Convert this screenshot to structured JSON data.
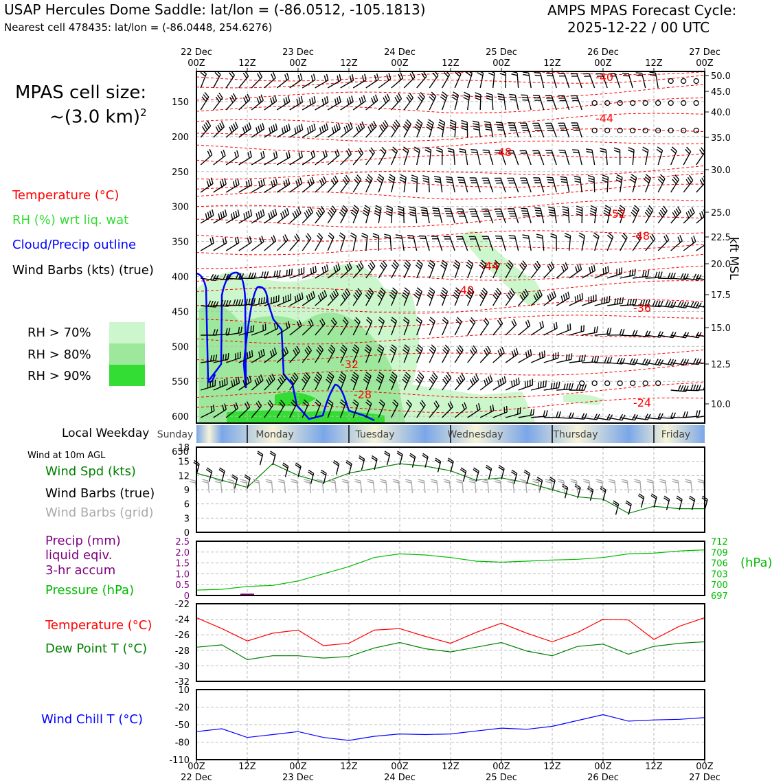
{
  "header": {
    "title_left": "USAP Hercules Dome Saddle: lat/lon = (-86.0512, -105.1813)",
    "subtitle_left": "Nearest cell 478435: lat/lon = (-86.0448, 254.6276)",
    "title_right_1": "AMPS MPAS Forecast Cycle:",
    "title_right_2": "2025-12-22 / 00 UTC"
  },
  "legend": {
    "cell_size_label": "MPAS cell size:",
    "cell_size_value": "~(3.0 km)",
    "cell_size_exp": "2",
    "temperature": "Temperature (°C)",
    "rh": "RH (%) wrt liq. wat",
    "cloud": "Cloud/Precip outline",
    "wind_barbs": "Wind Barbs (kts) (true)",
    "rh_levels": [
      "RH > 70%",
      "RH > 80%",
      "RH > 90%"
    ],
    "rh_colors": [
      "#ccf7cc",
      "#9de89d",
      "#33dd33"
    ]
  },
  "time_axis": {
    "top_labels": [
      {
        "day": "22 Dec",
        "hour": "00Z"
      },
      {
        "day": "",
        "hour": "12Z"
      },
      {
        "day": "23 Dec",
        "hour": "00Z"
      },
      {
        "day": "",
        "hour": "12Z"
      },
      {
        "day": "24 Dec",
        "hour": "00Z"
      },
      {
        "day": "",
        "hour": "12Z"
      },
      {
        "day": "25 Dec",
        "hour": "00Z"
      },
      {
        "day": "",
        "hour": "12Z"
      },
      {
        "day": "26 Dec",
        "hour": "00Z"
      },
      {
        "day": "",
        "hour": "12Z"
      },
      {
        "day": "27 Dec",
        "hour": "00Z"
      }
    ]
  },
  "weekday_bar": {
    "label": "Local Weekday",
    "days": [
      "Sunday",
      "Monday",
      "Tuesday",
      "Wednesday",
      "Thursday",
      "Friday"
    ]
  },
  "sounding_panel": {
    "pressure_ticks": [
      150,
      200,
      250,
      300,
      350,
      400,
      450,
      500,
      550,
      600,
      650
    ],
    "kft_ticks": [
      "50.0",
      "45.0",
      "40.0",
      "35.0",
      "30.0",
      "25.0",
      "22.5",
      "20.0",
      "17.5",
      "15.0",
      "12.5",
      "10.0"
    ],
    "kft_label": "kft MSL",
    "temp_contour_labels": [
      "-40",
      "-44",
      "-48",
      "-52",
      "-48",
      "-44",
      "-40",
      "-36",
      "-32",
      "-28",
      "-24"
    ]
  },
  "wind_panel": {
    "title": "Wind at 10m AGL",
    "spd_label": "Wind Spd (kts)",
    "barbs_true_label": "Wind Barbs (true)",
    "barbs_grid_label": "Wind Barbs (grid)",
    "y_ticks": [
      "0",
      "3",
      "6",
      "9",
      "12",
      "15",
      "18"
    ]
  },
  "precip_panel": {
    "precip_label_1": "Precip (mm)",
    "precip_label_2": "liquid eqiv.",
    "precip_label_3": "3-hr accum",
    "pressure_label": "Pressure (hPa)",
    "pressure_unit": "(hPa)",
    "left_ticks": [
      "0",
      "0.5",
      "1.0",
      "1.5",
      "2.0",
      "2.5"
    ],
    "right_ticks": [
      "697",
      "700",
      "703",
      "706",
      "709",
      "712"
    ]
  },
  "temp_panel": {
    "temp_label": "Temperature (°C)",
    "dew_label": "Dew Point T (°C)",
    "y_ticks": [
      "-22",
      "-24",
      "-26",
      "-28",
      "-30",
      "-32"
    ]
  },
  "chill_panel": {
    "label": "Wind Chill T (°C)",
    "y_ticks": [
      "10",
      "-20",
      "-50",
      "-80",
      "-110"
    ]
  },
  "colors": {
    "temperature": "#ff0000",
    "dewpoint": "#008000",
    "rh_label": "#33dd33",
    "cloud": "#0000ff",
    "pressure": "#00bb00",
    "precip": "#800080",
    "grid_barb": "#aaaaaa",
    "chill": "#0000ff"
  },
  "chart_data": [
    {
      "type": "line",
      "title": "Wind at 10m AGL",
      "ylabel": "Wind Spd (kts)",
      "ylim": [
        0,
        18
      ],
      "x_hours": [
        0,
        6,
        12,
        18,
        24,
        30,
        36,
        42,
        48,
        54,
        60,
        66,
        72,
        78,
        84,
        90,
        96,
        102,
        108,
        114,
        120
      ],
      "series": [
        {
          "name": "Wind Spd (kts)",
          "values": [
            12.5,
            11,
            9.5,
            14.5,
            12,
            10.5,
            12.5,
            13.5,
            14.5,
            14,
            13,
            11,
            11.5,
            10.5,
            9,
            7.5,
            7,
            4,
            5.5,
            5,
            5
          ]
        }
      ]
    },
    {
      "type": "line",
      "title": "Pressure (hPa) / Precip (mm) 3-hr accum",
      "ylim_precip": [
        0,
        2.5
      ],
      "ylim_pressure": [
        697,
        712
      ],
      "x_hours": [
        0,
        6,
        12,
        18,
        24,
        30,
        36,
        42,
        48,
        54,
        60,
        66,
        72,
        78,
        84,
        90,
        96,
        102,
        108,
        114,
        120
      ],
      "series": [
        {
          "name": "Pressure (hPa)",
          "values": [
            698.5,
            698.7,
            699.5,
            699.8,
            701,
            703,
            705,
            707.5,
            708.5,
            708.2,
            707.5,
            706.5,
            706.2,
            706.5,
            706.8,
            707,
            707.5,
            708.5,
            708.7,
            709.3,
            709.6
          ]
        },
        {
          "name": "Precip (mm)",
          "values": [
            0,
            0,
            0.02,
            0,
            0,
            0,
            0,
            0,
            0,
            0,
            0,
            0,
            0,
            0,
            0,
            0,
            0,
            0,
            0,
            0,
            0
          ]
        }
      ]
    },
    {
      "type": "line",
      "title": "Temperature / Dew Point",
      "ylim": [
        -32,
        -22
      ],
      "x_hours": [
        0,
        6,
        12,
        18,
        24,
        30,
        36,
        42,
        48,
        54,
        60,
        66,
        72,
        78,
        84,
        90,
        96,
        102,
        108,
        114,
        120
      ],
      "series": [
        {
          "name": "Temperature (°C)",
          "values": [
            -23.8,
            -25.2,
            -26.8,
            -25.8,
            -25.4,
            -27.4,
            -27.1,
            -25.4,
            -25.2,
            -26.2,
            -27.1,
            -25.7,
            -24.5,
            -25.8,
            -26.9,
            -25.7,
            -24,
            -24.1,
            -26.6,
            -24.9,
            -23.8
          ]
        },
        {
          "name": "Dew Point T (°C)",
          "values": [
            -27.6,
            -27.3,
            -29.2,
            -28.7,
            -28.7,
            -29,
            -28.8,
            -27.7,
            -27,
            -27.8,
            -28.2,
            -27.6,
            -27,
            -28.1,
            -28.7,
            -27.5,
            -27.2,
            -28.5,
            -27.5,
            -27.1,
            -26.9
          ]
        }
      ]
    },
    {
      "type": "line",
      "title": "Wind Chill T",
      "ylim": [
        -110,
        10
      ],
      "x_hours": [
        0,
        6,
        12,
        18,
        24,
        30,
        36,
        42,
        48,
        54,
        60,
        66,
        72,
        78,
        84,
        90,
        96,
        102,
        108,
        114,
        120
      ],
      "series": [
        {
          "name": "Wind Chill T (°C)",
          "values": [
            -62,
            -57,
            -72,
            -67,
            -62,
            -72,
            -77,
            -70,
            -66,
            -67,
            -66,
            -61,
            -56,
            -58,
            -53,
            -43,
            -33,
            -44,
            -42,
            -41,
            -38
          ]
        }
      ]
    }
  ]
}
